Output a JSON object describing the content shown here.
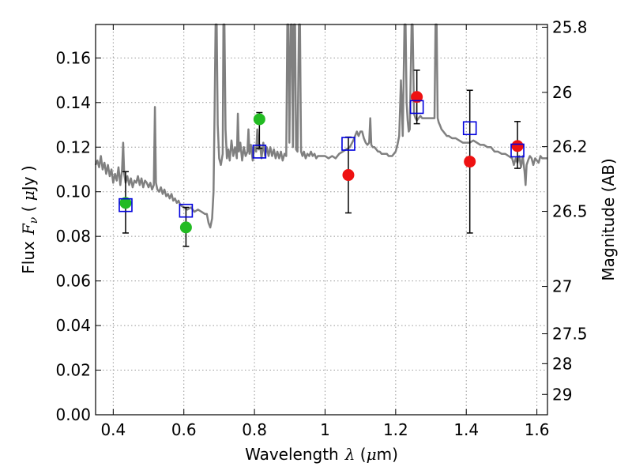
{
  "chart_data": {
    "type": "scatter",
    "xlabel_text": "Wavelength",
    "xlabel_symbol": "λ",
    "xlabel_unit_open": " (",
    "xlabel_unit_mu": "μ",
    "xlabel_unit_close": "m)",
    "ylabel_text": "Flux",
    "ylabel_symbol": "F",
    "ylabel_sub": "ν",
    "ylabel_unit_open": " ( ",
    "ylabel_unit_mu": "μ",
    "ylabel_unit_close": "Jy )",
    "y2label": "Magnitude (AB)",
    "xlim": [
      0.35,
      1.63
    ],
    "ylim": [
      0.0,
      0.175
    ],
    "grid": true,
    "x_ticks": [
      0.4,
      0.6,
      0.8,
      1.0,
      1.2,
      1.4,
      1.6
    ],
    "x_tick_labels": [
      "0.4",
      "0.6",
      "0.8",
      "1",
      "1.2",
      "1.4",
      "1.6"
    ],
    "y_ticks": [
      0.0,
      0.02,
      0.04,
      0.06,
      0.08,
      0.1,
      0.12,
      0.14,
      0.16
    ],
    "y_tick_labels": [
      "0.00",
      "0.02",
      "0.04",
      "0.06",
      "0.08",
      "0.10",
      "0.12",
      "0.14",
      "0.16"
    ],
    "y2_ticks": [
      25.8,
      26,
      26.2,
      26.5,
      27,
      27.5,
      28,
      29
    ],
    "y2_tick_labels": [
      "25.8",
      "26",
      "26.2",
      "26.5",
      "27",
      "27.5",
      "28",
      "29"
    ],
    "colors": {
      "model": "#808080",
      "observed_green": "#22bb22",
      "observed_red": "#ee1111",
      "model_squares": "#0000dd",
      "errorbar": "#000000",
      "grid": "#999999"
    },
    "series": [
      {
        "marker": "circle",
        "color": "#22bb22",
        "points": [
          {
            "x": 0.435,
            "y": 0.095,
            "err_low": 0.0815,
            "err_high": 0.109
          },
          {
            "x": 0.606,
            "y": 0.084,
            "err_low": 0.0755,
            "err_high": 0.093
          },
          {
            "x": 0.814,
            "y": 0.1325,
            "err_low": 0.1195,
            "err_high": 0.1355
          }
        ]
      },
      {
        "marker": "circle",
        "color": "#ee1111",
        "points": [
          {
            "x": 1.066,
            "y": 0.1075,
            "err_low": 0.0905,
            "err_high": 0.1245
          },
          {
            "x": 1.26,
            "y": 0.1425,
            "err_low": 0.1305,
            "err_high": 0.1545
          },
          {
            "x": 1.41,
            "y": 0.1135,
            "err_low": 0.0815,
            "err_high": 0.1455
          },
          {
            "x": 1.545,
            "y": 0.1205,
            "err_low": 0.1105,
            "err_high": 0.1315
          }
        ]
      },
      {
        "marker": "open-square",
        "color": "#0000dd",
        "points": [
          {
            "x": 0.435,
            "y": 0.094
          },
          {
            "x": 0.606,
            "y": 0.0915
          },
          {
            "x": 0.814,
            "y": 0.118
          },
          {
            "x": 1.066,
            "y": 0.1215
          },
          {
            "x": 1.26,
            "y": 0.138
          },
          {
            "x": 1.41,
            "y": 0.1285
          },
          {
            "x": 1.545,
            "y": 0.1185
          }
        ]
      },
      {
        "marker": "line",
        "color": "#808080",
        "points": [
          [
            0.35,
            0.112
          ],
          [
            0.355,
            0.114
          ],
          [
            0.36,
            0.111
          ],
          [
            0.365,
            0.116
          ],
          [
            0.37,
            0.11
          ],
          [
            0.375,
            0.113
          ],
          [
            0.38,
            0.108
          ],
          [
            0.385,
            0.112
          ],
          [
            0.39,
            0.107
          ],
          [
            0.395,
            0.11
          ],
          [
            0.4,
            0.104
          ],
          [
            0.405,
            0.108
          ],
          [
            0.41,
            0.105
          ],
          [
            0.415,
            0.111
          ],
          [
            0.42,
            0.103
          ],
          [
            0.425,
            0.11
          ],
          [
            0.428,
            0.122
          ],
          [
            0.431,
            0.108
          ],
          [
            0.435,
            0.104
          ],
          [
            0.44,
            0.107
          ],
          [
            0.445,
            0.103
          ],
          [
            0.45,
            0.106
          ],
          [
            0.455,
            0.102
          ],
          [
            0.46,
            0.105
          ],
          [
            0.465,
            0.104
          ],
          [
            0.47,
            0.107
          ],
          [
            0.475,
            0.103
          ],
          [
            0.48,
            0.106
          ],
          [
            0.485,
            0.102
          ],
          [
            0.49,
            0.105
          ],
          [
            0.495,
            0.104
          ],
          [
            0.5,
            0.102
          ],
          [
            0.505,
            0.104
          ],
          [
            0.51,
            0.101
          ],
          [
            0.515,
            0.103
          ],
          [
            0.518,
            0.138
          ],
          [
            0.521,
            0.104
          ],
          [
            0.525,
            0.101
          ],
          [
            0.53,
            0.1
          ],
          [
            0.535,
            0.102
          ],
          [
            0.54,
            0.099
          ],
          [
            0.545,
            0.101
          ],
          [
            0.55,
            0.098
          ],
          [
            0.555,
            0.099
          ],
          [
            0.56,
            0.097
          ],
          [
            0.565,
            0.099
          ],
          [
            0.57,
            0.096
          ],
          [
            0.575,
            0.097
          ],
          [
            0.58,
            0.095
          ],
          [
            0.585,
            0.096
          ],
          [
            0.59,
            0.094
          ],
          [
            0.6,
            0.093
          ],
          [
            0.61,
            0.092
          ],
          [
            0.62,
            0.093
          ],
          [
            0.63,
            0.091
          ],
          [
            0.64,
            0.092
          ],
          [
            0.65,
            0.091
          ],
          [
            0.66,
            0.09
          ],
          [
            0.665,
            0.09
          ],
          [
            0.67,
            0.086
          ],
          [
            0.675,
            0.084
          ],
          [
            0.68,
            0.088
          ],
          [
            0.684,
            0.1
          ],
          [
            0.687,
            0.135
          ],
          [
            0.69,
            0.175
          ],
          [
            0.693,
            0.175
          ],
          [
            0.696,
            0.13
          ],
          [
            0.7,
            0.115
          ],
          [
            0.705,
            0.112
          ],
          [
            0.71,
            0.117
          ],
          [
            0.712,
            0.175
          ],
          [
            0.715,
            0.175
          ],
          [
            0.718,
            0.128
          ],
          [
            0.722,
            0.115
          ],
          [
            0.726,
            0.119
          ],
          [
            0.73,
            0.114
          ],
          [
            0.735,
            0.123
          ],
          [
            0.74,
            0.116
          ],
          [
            0.745,
            0.12
          ],
          [
            0.75,
            0.115
          ],
          [
            0.753,
            0.135
          ],
          [
            0.756,
            0.118
          ],
          [
            0.76,
            0.122
          ],
          [
            0.765,
            0.114
          ],
          [
            0.77,
            0.12
          ],
          [
            0.775,
            0.116
          ],
          [
            0.78,
            0.118
          ],
          [
            0.783,
            0.128
          ],
          [
            0.786,
            0.117
          ],
          [
            0.79,
            0.121
          ],
          [
            0.795,
            0.114
          ],
          [
            0.8,
            0.12
          ],
          [
            0.805,
            0.118
          ],
          [
            0.808,
            0.128
          ],
          [
            0.812,
            0.119
          ],
          [
            0.816,
            0.121
          ],
          [
            0.82,
            0.115
          ],
          [
            0.825,
            0.122
          ],
          [
            0.83,
            0.116
          ],
          [
            0.835,
            0.12
          ],
          [
            0.84,
            0.116
          ],
          [
            0.845,
            0.12
          ],
          [
            0.85,
            0.116
          ],
          [
            0.855,
            0.119
          ],
          [
            0.86,
            0.115
          ],
          [
            0.865,
            0.118
          ],
          [
            0.87,
            0.115
          ],
          [
            0.875,
            0.118
          ],
          [
            0.88,
            0.114
          ],
          [
            0.885,
            0.117
          ],
          [
            0.89,
            0.116
          ],
          [
            0.893,
            0.175
          ],
          [
            0.896,
            0.175
          ],
          [
            0.899,
            0.122
          ],
          [
            0.903,
            0.175
          ],
          [
            0.906,
            0.175
          ],
          [
            0.909,
            0.12
          ],
          [
            0.912,
            0.175
          ],
          [
            0.915,
            0.175
          ],
          [
            0.918,
            0.119
          ],
          [
            0.922,
            0.118
          ],
          [
            0.926,
            0.175
          ],
          [
            0.929,
            0.175
          ],
          [
            0.932,
            0.118
          ],
          [
            0.936,
            0.116
          ],
          [
            0.94,
            0.118
          ],
          [
            0.945,
            0.115
          ],
          [
            0.95,
            0.117
          ],
          [
            0.955,
            0.116
          ],
          [
            0.96,
            0.118
          ],
          [
            0.965,
            0.116
          ],
          [
            0.97,
            0.117
          ],
          [
            0.975,
            0.115
          ],
          [
            0.98,
            0.116
          ],
          [
            0.985,
            0.116
          ],
          [
            0.99,
            0.116
          ],
          [
            1.0,
            0.116
          ],
          [
            1.01,
            0.115
          ],
          [
            1.02,
            0.116
          ],
          [
            1.03,
            0.115
          ],
          [
            1.04,
            0.117
          ],
          [
            1.05,
            0.118
          ],
          [
            1.06,
            0.119
          ],
          [
            1.07,
            0.12
          ],
          [
            1.08,
            0.123
          ],
          [
            1.09,
            0.127
          ],
          [
            1.095,
            0.125
          ],
          [
            1.1,
            0.127
          ],
          [
            1.105,
            0.127
          ],
          [
            1.11,
            0.124
          ],
          [
            1.115,
            0.122
          ],
          [
            1.12,
            0.121
          ],
          [
            1.125,
            0.122
          ],
          [
            1.128,
            0.133
          ],
          [
            1.131,
            0.121
          ],
          [
            1.135,
            0.12
          ],
          [
            1.14,
            0.12
          ],
          [
            1.145,
            0.119
          ],
          [
            1.15,
            0.118
          ],
          [
            1.155,
            0.118
          ],
          [
            1.16,
            0.117
          ],
          [
            1.165,
            0.117
          ],
          [
            1.17,
            0.117
          ],
          [
            1.175,
            0.117
          ],
          [
            1.18,
            0.116
          ],
          [
            1.185,
            0.116
          ],
          [
            1.19,
            0.116
          ],
          [
            1.195,
            0.117
          ],
          [
            1.2,
            0.118
          ],
          [
            1.205,
            0.121
          ],
          [
            1.21,
            0.125
          ],
          [
            1.215,
            0.15
          ],
          [
            1.22,
            0.125
          ],
          [
            1.225,
            0.175
          ],
          [
            1.228,
            0.175
          ],
          [
            1.231,
            0.14
          ],
          [
            1.234,
            0.132
          ],
          [
            1.237,
            0.127
          ],
          [
            1.24,
            0.128
          ],
          [
            1.245,
            0.175
          ],
          [
            1.248,
            0.175
          ],
          [
            1.252,
            0.135
          ],
          [
            1.256,
            0.133
          ],
          [
            1.26,
            0.132
          ],
          [
            1.265,
            0.133
          ],
          [
            1.27,
            0.134
          ],
          [
            1.275,
            0.133
          ],
          [
            1.28,
            0.133
          ],
          [
            1.285,
            0.133
          ],
          [
            1.29,
            0.133
          ],
          [
            1.295,
            0.133
          ],
          [
            1.3,
            0.133
          ],
          [
            1.305,
            0.133
          ],
          [
            1.31,
            0.133
          ],
          [
            1.313,
            0.175
          ],
          [
            1.316,
            0.175
          ],
          [
            1.319,
            0.133
          ],
          [
            1.322,
            0.131
          ],
          [
            1.325,
            0.13
          ],
          [
            1.33,
            0.128
          ],
          [
            1.335,
            0.127
          ],
          [
            1.34,
            0.126
          ],
          [
            1.345,
            0.125
          ],
          [
            1.35,
            0.125
          ],
          [
            1.36,
            0.124
          ],
          [
            1.37,
            0.124
          ],
          [
            1.38,
            0.123
          ],
          [
            1.39,
            0.122
          ],
          [
            1.4,
            0.122
          ],
          [
            1.41,
            0.122
          ],
          [
            1.42,
            0.123
          ],
          [
            1.43,
            0.122
          ],
          [
            1.44,
            0.121
          ],
          [
            1.45,
            0.121
          ],
          [
            1.46,
            0.12
          ],
          [
            1.47,
            0.12
          ],
          [
            1.48,
            0.118
          ],
          [
            1.49,
            0.118
          ],
          [
            1.5,
            0.117
          ],
          [
            1.51,
            0.117
          ],
          [
            1.52,
            0.116
          ],
          [
            1.53,
            0.115
          ],
          [
            1.535,
            0.112
          ],
          [
            1.54,
            0.115
          ],
          [
            1.545,
            0.113
          ],
          [
            1.55,
            0.116
          ],
          [
            1.555,
            0.111
          ],
          [
            1.56,
            0.116
          ],
          [
            1.565,
            0.109
          ],
          [
            1.568,
            0.103
          ],
          [
            1.571,
            0.112
          ],
          [
            1.575,
            0.114
          ],
          [
            1.58,
            0.116
          ],
          [
            1.585,
            0.115
          ],
          [
            1.59,
            0.112
          ],
          [
            1.595,
            0.115
          ],
          [
            1.6,
            0.114
          ],
          [
            1.605,
            0.113
          ],
          [
            1.61,
            0.116
          ],
          [
            1.615,
            0.115
          ],
          [
            1.62,
            0.115
          ],
          [
            1.63,
            0.115
          ]
        ]
      }
    ]
  }
}
